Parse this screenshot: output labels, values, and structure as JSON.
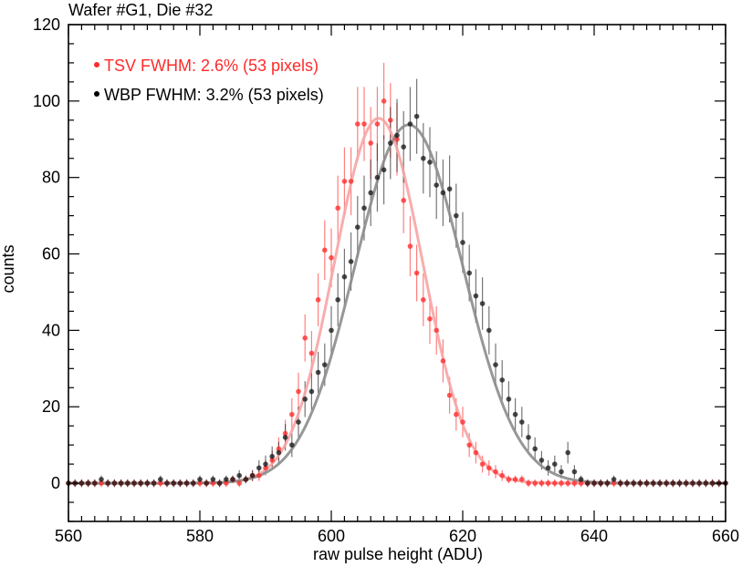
{
  "chart_data": {
    "type": "scatter",
    "title": "Wafer #G1,  Die #32",
    "xlabel": "raw pulse height (ADU)",
    "ylabel": "counts",
    "xlim": [
      560,
      660
    ],
    "ylim": [
      -10,
      120
    ],
    "x_ticks": [
      560,
      580,
      600,
      620,
      640,
      660
    ],
    "x_tick_labels": [
      "560",
      "580",
      "600",
      "620",
      "640",
      "660"
    ],
    "y_ticks": [
      0,
      20,
      40,
      60,
      80,
      100,
      120
    ],
    "y_tick_labels": [
      "0",
      "20",
      "40",
      "60",
      "80",
      "100",
      "120"
    ],
    "x_minor_step": 2,
    "y_minor_step": 5,
    "grid": false,
    "legend_position": "top-left",
    "series": [
      {
        "name": "TSV FWHM: 2.6% (53 pixels)",
        "color": "#ff2a2a",
        "fit_color": "#f7a4a4",
        "fit": {
          "amplitude": 95.5,
          "center": 607.2,
          "sigma": 6.7
        },
        "x": [
          560,
          561,
          562,
          563,
          564,
          565,
          566,
          567,
          568,
          569,
          570,
          571,
          572,
          573,
          574,
          575,
          576,
          577,
          578,
          579,
          580,
          581,
          582,
          583,
          584,
          585,
          586,
          587,
          588,
          589,
          590,
          591,
          592,
          593,
          594,
          595,
          596,
          597,
          598,
          599,
          600,
          601,
          602,
          603,
          604,
          605,
          606,
          607,
          608,
          609,
          610,
          611,
          612,
          613,
          614,
          615,
          616,
          617,
          618,
          619,
          620,
          621,
          622,
          623,
          624,
          625,
          626,
          627,
          628,
          629,
          630,
          631,
          632,
          633,
          634,
          635,
          636,
          637,
          638,
          639,
          640,
          641,
          642,
          643,
          644,
          645,
          646,
          647,
          648,
          649,
          650,
          651,
          652,
          653,
          654,
          655,
          656,
          657,
          658,
          659,
          660
        ],
        "y": [
          0,
          0,
          0,
          0,
          0,
          0,
          0,
          0,
          0,
          0,
          0,
          0,
          0,
          0,
          0,
          0,
          0,
          0,
          0,
          0,
          0,
          0,
          0,
          0,
          0,
          1,
          0,
          1,
          2,
          2,
          4,
          6,
          9,
          13,
          18,
          24,
          38,
          34,
          48,
          61,
          59,
          72,
          79,
          79,
          94,
          94,
          89,
          94,
          100,
          95,
          90,
          74,
          62,
          55,
          48,
          43,
          40,
          32,
          23,
          18,
          16,
          10,
          8,
          5,
          4,
          3,
          2,
          1,
          1,
          1,
          0,
          0,
          0,
          0,
          0,
          0,
          0,
          0,
          0,
          0,
          0,
          0,
          0,
          0,
          0,
          0,
          0,
          0,
          0,
          0,
          0,
          0,
          0,
          0,
          0,
          0,
          0,
          0,
          0,
          0,
          0
        ]
      },
      {
        "name": "WBP FWHM: 3.2% (53 pixels)",
        "color": "#1a1a1a",
        "fit_color": "#8c8c8c",
        "fit": {
          "amplitude": 93.8,
          "center": 611.8,
          "sigma": 8.2
        },
        "x": [
          560,
          561,
          562,
          563,
          564,
          565,
          566,
          567,
          568,
          569,
          570,
          571,
          572,
          573,
          574,
          575,
          576,
          577,
          578,
          579,
          580,
          581,
          582,
          583,
          584,
          585,
          586,
          587,
          588,
          589,
          590,
          591,
          592,
          593,
          594,
          595,
          596,
          597,
          598,
          599,
          600,
          601,
          602,
          603,
          604,
          605,
          606,
          607,
          608,
          609,
          610,
          611,
          612,
          613,
          614,
          615,
          616,
          617,
          618,
          619,
          620,
          621,
          622,
          623,
          624,
          625,
          626,
          627,
          628,
          629,
          630,
          631,
          632,
          633,
          634,
          635,
          636,
          637,
          638,
          639,
          640,
          641,
          642,
          643,
          644,
          645,
          646,
          647,
          648,
          649,
          650,
          651,
          652,
          653,
          654,
          655,
          656,
          657,
          658,
          659,
          660
        ],
        "y": [
          0,
          0,
          0,
          0,
          0,
          1,
          0,
          0,
          0,
          0,
          0,
          0,
          0,
          0,
          1,
          0,
          0,
          0,
          0,
          0,
          1,
          0,
          1,
          0,
          1,
          1,
          2,
          1,
          2,
          4,
          5,
          7,
          8,
          12,
          10,
          16,
          22,
          24,
          29,
          31,
          40,
          48,
          54,
          58,
          67,
          72,
          76,
          80,
          82,
          89,
          91,
          88,
          94,
          96,
          85,
          84,
          78,
          76,
          77,
          70,
          63,
          55,
          49,
          47,
          40,
          31,
          27,
          22,
          18,
          16,
          12,
          9,
          6,
          4,
          5,
          3,
          8,
          3,
          1,
          0,
          0,
          0,
          0,
          1,
          0,
          0,
          0,
          0,
          0,
          0,
          0,
          0,
          0,
          0,
          0,
          0,
          0,
          0,
          0,
          0,
          0
        ]
      }
    ]
  }
}
